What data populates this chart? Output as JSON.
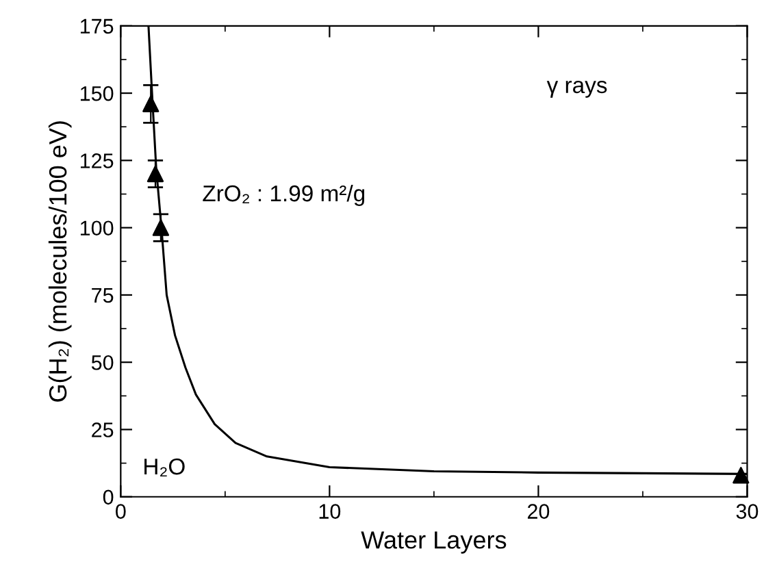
{
  "chart_data": {
    "type": "scatter",
    "xlabel": "Water Layers",
    "ylabel": "G(H₂) (molecules/100 eV)",
    "annotations": [
      "γ rays",
      "ZrO₂ : 1.99 m²/g",
      "H₂O"
    ],
    "series": [
      {
        "color": "#000000",
        "marker": "triangle",
        "x": [
          1.44,
          1.66,
          1.92,
          29.7
        ],
        "values": [
          146,
          120,
          100,
          8
        ],
        "errors": [
          7,
          5,
          5,
          null
        ]
      },
      {
        "type": "line",
        "color": "#000000",
        "marker": "none",
        "line_style": "solid",
        "x": [
          1.33,
          1.5,
          1.7,
          1.95,
          2.2,
          2.6,
          3.1,
          3.6,
          4.5,
          5.5,
          7,
          10,
          15,
          20,
          30
        ],
        "values": [
          175,
          150,
          122,
          100,
          75,
          60,
          48,
          38,
          27,
          20,
          15,
          11,
          9.5,
          9,
          8.5
        ]
      }
    ],
    "xlim": [
      0,
      30
    ],
    "xticks": [
      0,
      10,
      20,
      30
    ],
    "ylim": [
      0,
      175
    ],
    "yticks": [
      0,
      25,
      50,
      75,
      100,
      125,
      150,
      175
    ],
    "grid": false,
    "legend": false
  }
}
